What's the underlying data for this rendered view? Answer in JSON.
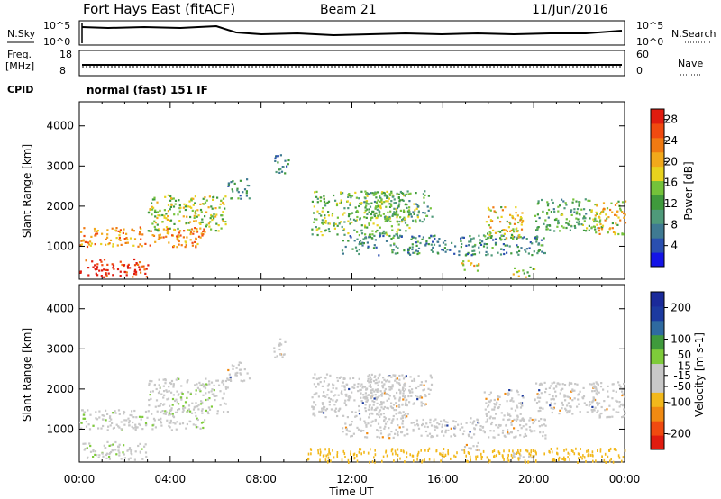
{
  "header": {
    "station_title": "Fort Hays East (fitACF)",
    "beam": "Beam 21",
    "date": "11/Jun/2016"
  },
  "top_panels": {
    "noise": {
      "left_label": "N.Sky",
      "right_label": "N.Search",
      "left_ticks": [
        "10^5",
        "10^0"
      ],
      "right_ticks": [
        "10^5",
        "10^0"
      ]
    },
    "freq": {
      "left_label": "Freq.",
      "left_unit": "[MHz]",
      "left_ticks": [
        "18",
        "8"
      ],
      "right_label": "Nave",
      "right_ticks": [
        "60",
        "0"
      ]
    },
    "cpid": {
      "label": "CPID",
      "text": "normal (fast) 151 IF"
    }
  },
  "colors": {
    "power_scale": [
      "#1414e6",
      "#2a4fb0",
      "#3f7a92",
      "#4f9a7a",
      "#3f9a3c",
      "#74c23a",
      "#e8d21e",
      "#f2a91b",
      "#f07a12",
      "#f04a10",
      "#e01c10"
    ],
    "velocity_scale": [
      "#e01c10",
      "#f04a10",
      "#f08a12",
      "#f2b81b",
      "#c8c8c8",
      "#c8c8c8",
      "#7ecb3a",
      "#3f9a3c",
      "#2f6aa0",
      "#1c3aa0",
      "#1a2a9a"
    ],
    "ground_scatter": "#c8c8c8"
  },
  "chart_data": [
    {
      "type": "heatmap",
      "name": "power",
      "ylabel": "Slant Range [km]",
      "ylim": [
        180,
        4600
      ],
      "y_ticks": [
        "1000",
        "2000",
        "3000",
        "4000"
      ],
      "x_ticks": [
        "00:00",
        "04:00",
        "08:00",
        "12:00",
        "16:00",
        "20:00",
        "00:00"
      ],
      "colorbar": {
        "label": "Power [dB]",
        "ticks": [
          "4",
          "8",
          "12",
          "16",
          "20",
          "24",
          "28"
        ],
        "range": [
          0,
          30
        ]
      },
      "scatter_regions": [
        {
          "t0": 0.0,
          "t1": 3.0,
          "r0": 250,
          "r1": 700,
          "power": 28
        },
        {
          "t0": 0.0,
          "t1": 5.5,
          "r0": 1000,
          "r1": 1500,
          "power": 22
        },
        {
          "t0": 3.0,
          "t1": 6.5,
          "r0": 1400,
          "r1": 2300,
          "power": 16
        },
        {
          "t0": 6.5,
          "t1": 7.5,
          "r0": 2200,
          "r1": 2700,
          "power": 10
        },
        {
          "t0": 8.5,
          "t1": 9.2,
          "r0": 2800,
          "r1": 3300,
          "power": 8
        },
        {
          "t0": 10.2,
          "t1": 14.5,
          "r0": 1300,
          "r1": 2400,
          "power": 14
        },
        {
          "t0": 11.5,
          "t1": 20.5,
          "r0": 800,
          "r1": 1300,
          "power": 9
        },
        {
          "t0": 12.5,
          "t1": 15.5,
          "r0": 1600,
          "r1": 2400,
          "power": 12
        },
        {
          "t0": 16.8,
          "t1": 17.6,
          "r0": 400,
          "r1": 700,
          "power": 18
        },
        {
          "t0": 17.8,
          "t1": 19.5,
          "r0": 1200,
          "r1": 2000,
          "power": 18
        },
        {
          "t0": 19.0,
          "t1": 20.0,
          "r0": 250,
          "r1": 500,
          "power": 16
        },
        {
          "t0": 20.0,
          "t1": 22.8,
          "r0": 1400,
          "r1": 2200,
          "power": 12
        },
        {
          "t0": 22.5,
          "t1": 24.0,
          "r0": 1300,
          "r1": 2200,
          "power": 18
        }
      ]
    },
    {
      "type": "heatmap",
      "name": "velocity",
      "ylabel": "Slant Range [km]",
      "xlabel": "Time UT",
      "ylim": [
        180,
        4600
      ],
      "y_ticks": [
        "1000",
        "2000",
        "3000",
        "4000"
      ],
      "x_ticks": [
        "00:00",
        "04:00",
        "08:00",
        "12:00",
        "16:00",
        "20:00",
        "00:00"
      ],
      "colorbar": {
        "label": "Velocity [m s-1]",
        "ticks": [
          "-200",
          "-100",
          "-50",
          "-15",
          "15",
          "50",
          "100",
          "200"
        ],
        "range": [
          -250,
          250
        ]
      },
      "notes": "Mostly ground scatter (grey) with near-zero velocity; small positive (green) near 00-06 UT and negative (orange) at low ranges 10-24 UT."
    }
  ]
}
